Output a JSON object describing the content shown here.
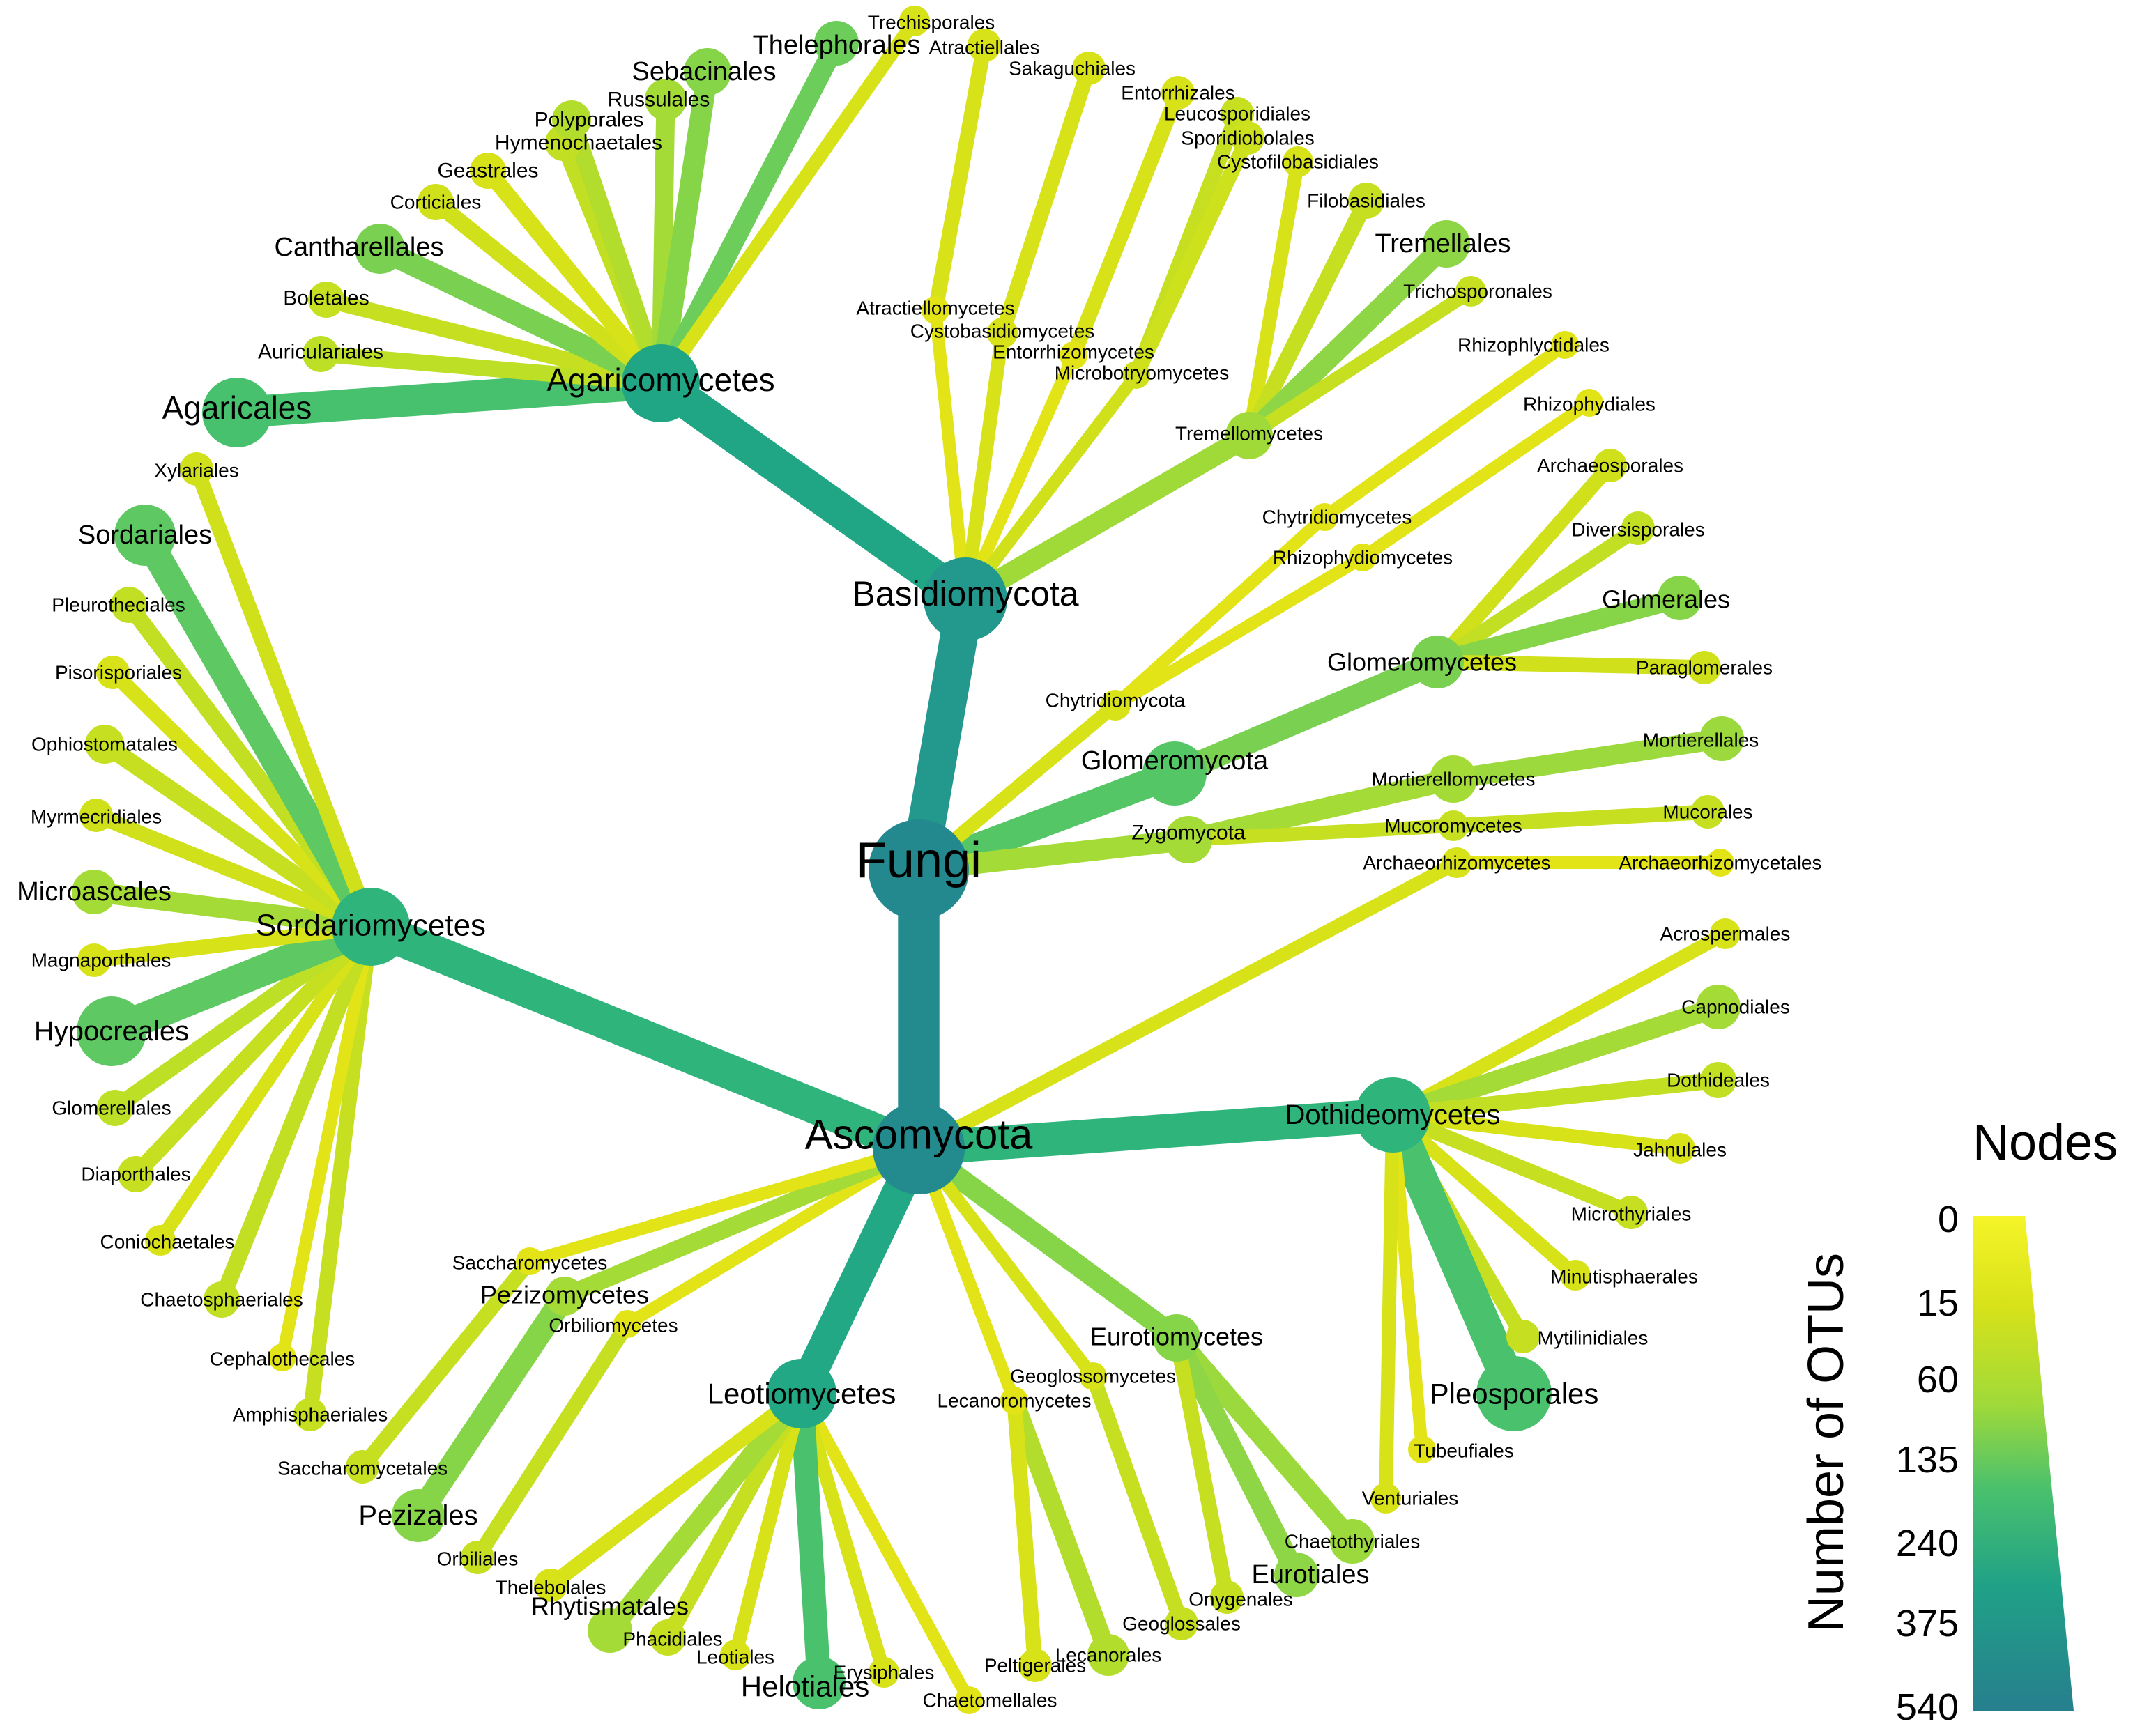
{
  "legend": {
    "title": "Nodes",
    "axis_label": "Number of OTUs",
    "ticks": [
      "0",
      "15",
      "60",
      "135",
      "240",
      "375",
      "540"
    ],
    "colors": [
      "#d8e219",
      "#a0da39",
      "#4ac16d",
      "#1fa187",
      "#277f8e"
    ]
  },
  "nodes": [
    {
      "id": "fungi",
      "label": "Fungi"
    },
    {
      "id": "basidiomycota",
      "label": "Basidiomycota"
    },
    {
      "id": "ascomycota",
      "label": "Ascomycota"
    },
    {
      "id": "glomeromycota",
      "label": "Glomeromycota"
    },
    {
      "id": "zygomycota",
      "label": "Zygomycota"
    },
    {
      "id": "chytridiomycota",
      "label": "Chytridiomycota"
    },
    {
      "id": "agaricomycetes",
      "label": "Agaricomycetes"
    },
    {
      "id": "agaricales",
      "label": "Agaricales"
    },
    {
      "id": "auriculariales",
      "label": "Auriculariales"
    },
    {
      "id": "boletales",
      "label": "Boletales"
    },
    {
      "id": "cantharellales",
      "label": "Cantharellales"
    },
    {
      "id": "corticiales",
      "label": "Corticiales"
    },
    {
      "id": "geastrales",
      "label": "Geastrales"
    },
    {
      "id": "hymenochaetales",
      "label": "Hymenochaetales"
    },
    {
      "id": "polyporales",
      "label": "Polyporales"
    },
    {
      "id": "russulales",
      "label": "Russulales"
    },
    {
      "id": "sebacinales",
      "label": "Sebacinales"
    },
    {
      "id": "thelephorales",
      "label": "Thelephorales"
    },
    {
      "id": "trechisporales",
      "label": "Trechisporales"
    },
    {
      "id": "atractiellomycetes",
      "label": "Atractiellomycetes"
    },
    {
      "id": "atractiellales",
      "label": "Atractiellales"
    },
    {
      "id": "cystobasidiomycetes",
      "label": "Cystobasidiomycetes"
    },
    {
      "id": "sakaguchiales",
      "label": "Sakaguchiales"
    },
    {
      "id": "entorrhizomycetes",
      "label": "Entorrhizomycetes"
    },
    {
      "id": "entorrhizales",
      "label": "Entorrhizales"
    },
    {
      "id": "microbotryomycetes",
      "label": "Microbotryomycetes"
    },
    {
      "id": "leucosporidiales",
      "label": "Leucosporidiales"
    },
    {
      "id": "sporidiobolales",
      "label": "Sporidiobolales"
    },
    {
      "id": "tremellomycetes",
      "label": "Tremellomycetes"
    },
    {
      "id": "cystofilobasidiales",
      "label": "Cystofilobasidiales"
    },
    {
      "id": "filobasidiales",
      "label": "Filobasidiales"
    },
    {
      "id": "tremellales",
      "label": "Tremellales"
    },
    {
      "id": "trichosporonales",
      "label": "Trichosporonales"
    },
    {
      "id": "chytridiomycetes",
      "label": "Chytridiomycetes"
    },
    {
      "id": "rhizophlyctidales",
      "label": "Rhizophlyctidales"
    },
    {
      "id": "rhizophydiomycetes",
      "label": "Rhizophydiomycetes"
    },
    {
      "id": "rhizophydiales",
      "label": "Rhizophydiales"
    },
    {
      "id": "glomeromycetes",
      "label": "Glomeromycetes"
    },
    {
      "id": "archaeosporales",
      "label": "Archaeosporales"
    },
    {
      "id": "diversisporales",
      "label": "Diversisporales"
    },
    {
      "id": "glomerales",
      "label": "Glomerales"
    },
    {
      "id": "paraglomerales",
      "label": "Paraglomerales"
    },
    {
      "id": "mortierellomycetes",
      "label": "Mortierellomycetes"
    },
    {
      "id": "mortierellales",
      "label": "Mortierellales"
    },
    {
      "id": "mucoromycetes",
      "label": "Mucoromycetes"
    },
    {
      "id": "mucorales",
      "label": "Mucorales"
    },
    {
      "id": "archaeorhizomycetes",
      "label": "Archaeorhizomycetes"
    },
    {
      "id": "archaeorhizomycetales",
      "label": "Archaeorhizomycetales"
    },
    {
      "id": "dothideomycetes",
      "label": "Dothideomycetes"
    },
    {
      "id": "acrospermales",
      "label": "Acrospermales"
    },
    {
      "id": "capnodiales",
      "label": "Capnodiales"
    },
    {
      "id": "dothideales",
      "label": "Dothideales"
    },
    {
      "id": "jahnulales",
      "label": "Jahnulales"
    },
    {
      "id": "microthyriales",
      "label": "Microthyriales"
    },
    {
      "id": "minutisphaerales",
      "label": "Minutisphaerales"
    },
    {
      "id": "mytilinidiales",
      "label": "Mytilinidiales"
    },
    {
      "id": "pleosporales",
      "label": "Pleosporales"
    },
    {
      "id": "tubeufiales",
      "label": "Tubeufiales"
    },
    {
      "id": "venturiales",
      "label": "Venturiales"
    },
    {
      "id": "eurotiomycetes",
      "label": "Eurotiomycetes"
    },
    {
      "id": "chaetothyriales",
      "label": "Chaetothyriales"
    },
    {
      "id": "eurotiales",
      "label": "Eurotiales"
    },
    {
      "id": "onygenales",
      "label": "Onygenales"
    },
    {
      "id": "geoglossomycetes",
      "label": "Geoglossomycetes"
    },
    {
      "id": "geoglossales",
      "label": "Geoglossales"
    },
    {
      "id": "lecanoromycetes",
      "label": "Lecanoromycetes"
    },
    {
      "id": "lecanorales",
      "label": "Lecanorales"
    },
    {
      "id": "peltigerales",
      "label": "Peltigerales"
    },
    {
      "id": "leotiomycetes",
      "label": "Leotiomycetes"
    },
    {
      "id": "chaetomellales",
      "label": "Chaetomellales"
    },
    {
      "id": "erysiphales",
      "label": "Erysiphales"
    },
    {
      "id": "helotiales",
      "label": "Helotiales"
    },
    {
      "id": "leotiales",
      "label": "Leotiales"
    },
    {
      "id": "phacidiales",
      "label": "Phacidiales"
    },
    {
      "id": "rhytismatales",
      "label": "Rhytismatales"
    },
    {
      "id": "thelebolales",
      "label": "Thelebolales"
    },
    {
      "id": "orbiliomycetes",
      "label": "Orbiliomycetes"
    },
    {
      "id": "orbiliales",
      "label": "Orbiliales"
    },
    {
      "id": "pezizomycetes",
      "label": "Pezizomycetes"
    },
    {
      "id": "pezizales",
      "label": "Pezizales"
    },
    {
      "id": "saccharomycetes",
      "label": "Saccharomycetes"
    },
    {
      "id": "saccharomycetales",
      "label": "Saccharomycetales"
    },
    {
      "id": "sordariomycetes",
      "label": "Sordariomycetes"
    },
    {
      "id": "amphisphaeriales",
      "label": "Amphisphaeriales"
    },
    {
      "id": "cephalothecales",
      "label": "Cephalothecales"
    },
    {
      "id": "chaetosphaeriales",
      "label": "Chaetosphaeriales"
    },
    {
      "id": "coniochaetales",
      "label": "Coniochaetales"
    },
    {
      "id": "diaporthales",
      "label": "Diaporthales"
    },
    {
      "id": "glomerellales",
      "label": "Glomerellales"
    },
    {
      "id": "hypocreales",
      "label": "Hypocreales"
    },
    {
      "id": "magnaporthales",
      "label": "Magnaporthales"
    },
    {
      "id": "microascales",
      "label": "Microascales"
    },
    {
      "id": "myrmecridiales",
      "label": "Myrmecridiales"
    },
    {
      "id": "ophiostomatales",
      "label": "Ophiostomatales"
    },
    {
      "id": "pisorisporiales",
      "label": "Pisorisporiales"
    },
    {
      "id": "pleurotheciales",
      "label": "Pleurotheciales"
    },
    {
      "id": "sordariales",
      "label": "Sordariales"
    },
    {
      "id": "xylariales",
      "label": "Xylariales"
    }
  ],
  "edges": [
    [
      "fungi",
      "ascomycota"
    ],
    [
      "fungi",
      "basidiomycota"
    ],
    [
      "fungi",
      "glomeromycota"
    ],
    [
      "fungi",
      "zygomycota"
    ],
    [
      "fungi",
      "chytridiomycota"
    ],
    [
      "basidiomycota",
      "agaricomycetes"
    ],
    [
      "basidiomycota",
      "atractiellomycetes"
    ],
    [
      "basidiomycota",
      "cystobasidiomycetes"
    ],
    [
      "basidiomycota",
      "entorrhizomycetes"
    ],
    [
      "basidiomycota",
      "microbotryomycetes"
    ],
    [
      "basidiomycota",
      "tremellomycetes"
    ],
    [
      "agaricomycetes",
      "agaricales"
    ],
    [
      "agaricomycetes",
      "auriculariales"
    ],
    [
      "agaricomycetes",
      "boletales"
    ],
    [
      "agaricomycetes",
      "cantharellales"
    ],
    [
      "agaricomycetes",
      "corticiales"
    ],
    [
      "agaricomycetes",
      "geastrales"
    ],
    [
      "agaricomycetes",
      "hymenochaetales"
    ],
    [
      "agaricomycetes",
      "polyporales"
    ],
    [
      "agaricomycetes",
      "russulales"
    ],
    [
      "agaricomycetes",
      "sebacinales"
    ],
    [
      "agaricomycetes",
      "thelephorales"
    ],
    [
      "agaricomycetes",
      "trechisporales"
    ],
    [
      "atractiellomycetes",
      "atractiellales"
    ],
    [
      "cystobasidiomycetes",
      "sakaguchiales"
    ],
    [
      "entorrhizomycetes",
      "entorrhizales"
    ],
    [
      "microbotryomycetes",
      "leucosporidiales"
    ],
    [
      "microbotryomycetes",
      "sporidiobolales"
    ],
    [
      "tremellomycetes",
      "cystofilobasidiales"
    ],
    [
      "tremellomycetes",
      "filobasidiales"
    ],
    [
      "tremellomycetes",
      "tremellales"
    ],
    [
      "tremellomycetes",
      "trichosporonales"
    ],
    [
      "chytridiomycota",
      "chytridiomycetes"
    ],
    [
      "chytridiomycota",
      "rhizophydiomycetes"
    ],
    [
      "chytridiomycetes",
      "rhizophlyctidales"
    ],
    [
      "rhizophydiomycetes",
      "rhizophydiales"
    ],
    [
      "glomeromycota",
      "glomeromycetes"
    ],
    [
      "glomeromycetes",
      "archaeosporales"
    ],
    [
      "glomeromycetes",
      "diversisporales"
    ],
    [
      "glomeromycetes",
      "glomerales"
    ],
    [
      "glomeromycetes",
      "paraglomerales"
    ],
    [
      "zygomycota",
      "mortierellomycetes"
    ],
    [
      "zygomycota",
      "mucoromycetes"
    ],
    [
      "mortierellomycetes",
      "mortierellales"
    ],
    [
      "mucoromycetes",
      "mucorales"
    ],
    [
      "ascomycota",
      "archaeorhizomycetes"
    ],
    [
      "archaeorhizomycetes",
      "archaeorhizomycetales"
    ],
    [
      "ascomycota",
      "dothideomycetes"
    ],
    [
      "dothideomycetes",
      "acrospermales"
    ],
    [
      "dothideomycetes",
      "capnodiales"
    ],
    [
      "dothideomycetes",
      "dothideales"
    ],
    [
      "dothideomycetes",
      "jahnulales"
    ],
    [
      "dothideomycetes",
      "microthyriales"
    ],
    [
      "dothideomycetes",
      "minutisphaerales"
    ],
    [
      "dothideomycetes",
      "mytilinidiales"
    ],
    [
      "dothideomycetes",
      "pleosporales"
    ],
    [
      "dothideomycetes",
      "tubeufiales"
    ],
    [
      "dothideomycetes",
      "venturiales"
    ],
    [
      "ascomycota",
      "eurotiomycetes"
    ],
    [
      "eurotiomycetes",
      "chaetothyriales"
    ],
    [
      "eurotiomycetes",
      "eurotiales"
    ],
    [
      "eurotiomycetes",
      "onygenales"
    ],
    [
      "ascomycota",
      "geoglossomycetes"
    ],
    [
      "geoglossomycetes",
      "geoglossales"
    ],
    [
      "ascomycota",
      "lecanoromycetes"
    ],
    [
      "lecanoromycetes",
      "lecanorales"
    ],
    [
      "lecanoromycetes",
      "peltigerales"
    ],
    [
      "ascomycota",
      "leotiomycetes"
    ],
    [
      "leotiomycetes",
      "chaetomellales"
    ],
    [
      "leotiomycetes",
      "erysiphales"
    ],
    [
      "leotiomycetes",
      "helotiales"
    ],
    [
      "leotiomycetes",
      "leotiales"
    ],
    [
      "leotiomycetes",
      "phacidiales"
    ],
    [
      "leotiomycetes",
      "rhytismatales"
    ],
    [
      "leotiomycetes",
      "thelebolales"
    ],
    [
      "ascomycota",
      "orbiliomycetes"
    ],
    [
      "orbiliomycetes",
      "orbiliales"
    ],
    [
      "ascomycota",
      "pezizomycetes"
    ],
    [
      "pezizomycetes",
      "pezizales"
    ],
    [
      "ascomycota",
      "saccharomycetes"
    ],
    [
      "saccharomycetes",
      "saccharomycetales"
    ],
    [
      "ascomycota",
      "sordariomycetes"
    ],
    [
      "sordariomycetes",
      "amphisphaeriales"
    ],
    [
      "sordariomycetes",
      "cephalothecales"
    ],
    [
      "sordariomycetes",
      "chaetosphaeriales"
    ],
    [
      "sordariomycetes",
      "coniochaetales"
    ],
    [
      "sordariomycetes",
      "diaporthales"
    ],
    [
      "sordariomycetes",
      "glomerellales"
    ],
    [
      "sordariomycetes",
      "hypocreales"
    ],
    [
      "sordariomycetes",
      "magnaporthales"
    ],
    [
      "sordariomycetes",
      "microascales"
    ],
    [
      "sordariomycetes",
      "myrmecridiales"
    ],
    [
      "sordariomycetes",
      "ophiostomatales"
    ],
    [
      "sordariomycetes",
      "pisorisporiales"
    ],
    [
      "sordariomycetes",
      "pleurotheciales"
    ],
    [
      "sordariomycetes",
      "sordariales"
    ],
    [
      "sordariomycetes",
      "xylariales"
    ]
  ]
}
